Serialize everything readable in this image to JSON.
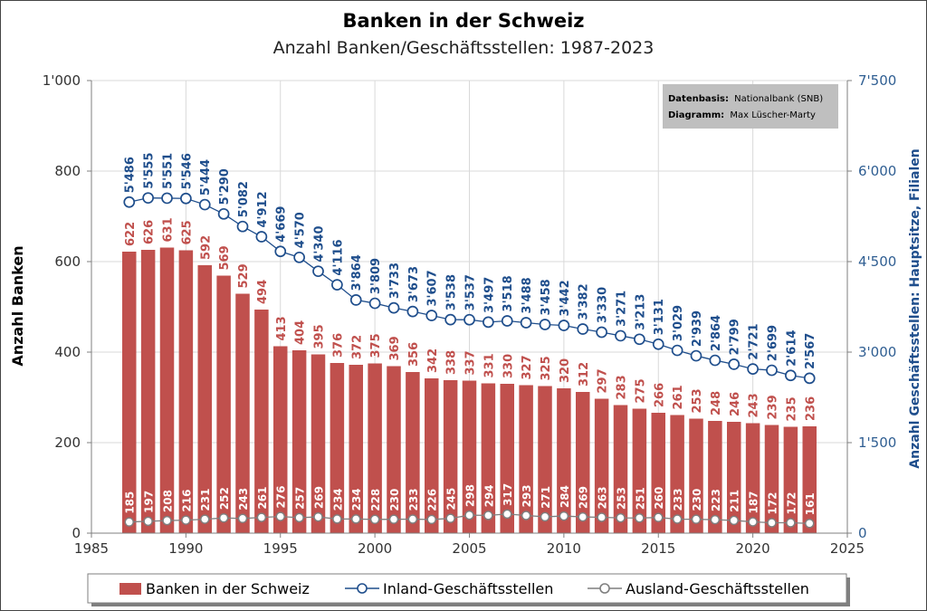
{
  "chart_data": {
    "type": "bar",
    "title": "Banken in der Schweiz",
    "subtitle": "Anzahl Banken/Geschäftsstellen: 1987-2023",
    "ylabel": "Anzahl Banken",
    "y2label": "Anzahl Geschäftsstellen: Hauptsitze, Filialen",
    "xlim": [
      1985,
      2025
    ],
    "x_ticks": [
      "1985",
      "1990",
      "1995",
      "2000",
      "2005",
      "2010",
      "2015",
      "2020",
      "2025"
    ],
    "ylim": [
      0,
      1000
    ],
    "y_ticks": [
      "0",
      "200",
      "400",
      "600",
      "800",
      "1'000"
    ],
    "y2lim": [
      0,
      7500
    ],
    "y2_ticks": [
      "0",
      "1'500",
      "3'000",
      "4'500",
      "6'000",
      "7'500"
    ],
    "grid": true,
    "legend_position": "bottom",
    "source_note": {
      "line1_key": "Datenbasis:",
      "line1_value": "Nationalbank (SNB)",
      "line2_key": "Diagramm:",
      "line2_value": "Max Lüscher-Marty"
    },
    "x": [
      1987,
      1988,
      1989,
      1990,
      1991,
      1992,
      1993,
      1994,
      1995,
      1996,
      1997,
      1998,
      1999,
      2000,
      2001,
      2002,
      2003,
      2004,
      2005,
      2006,
      2007,
      2008,
      2009,
      2010,
      2011,
      2012,
      2013,
      2014,
      2015,
      2016,
      2017,
      2018,
      2019,
      2020,
      2021,
      2022,
      2023
    ],
    "series": [
      {
        "name": "Banken in der Schweiz",
        "type": "bar",
        "axis": "left",
        "color": "#c0504d",
        "values": [
          622,
          626,
          631,
          625,
          592,
          569,
          529,
          494,
          413,
          404,
          395,
          376,
          372,
          375,
          369,
          356,
          342,
          338,
          337,
          331,
          330,
          327,
          325,
          320,
          312,
          297,
          283,
          275,
          266,
          261,
          253,
          248,
          246,
          243,
          239,
          235,
          236
        ]
      },
      {
        "name": "Inland-Geschäftsstellen",
        "type": "line",
        "axis": "right",
        "color": "#1f4e8c",
        "values": [
          5486,
          5555,
          5551,
          5546,
          5444,
          5290,
          5082,
          4912,
          4669,
          4570,
          4340,
          4116,
          3864,
          3809,
          3733,
          3673,
          3607,
          3538,
          3537,
          3497,
          3518,
          3488,
          3458,
          3442,
          3382,
          3330,
          3271,
          3213,
          3131,
          3029,
          2939,
          2864,
          2799,
          2721,
          2699,
          2614,
          2567
        ],
        "labels": [
          "5'486",
          "5'555",
          "5'551",
          "5'546",
          "5'444",
          "5'290",
          "5'082",
          "4'912",
          "4'669",
          "4'570",
          "4'340",
          "4'116",
          "3'864",
          "3'809",
          "3'733",
          "3'673",
          "3'607",
          "3'538",
          "3'537",
          "3'497",
          "3'518",
          "3'488",
          "3'458",
          "3'442",
          "3'382",
          "3'330",
          "3'271",
          "3'213",
          "3'131",
          "3'029",
          "2'939",
          "2'864",
          "2'799",
          "2'721",
          "2'699",
          "2'614",
          "2'567"
        ]
      },
      {
        "name": "Ausland-Geschäftsstellen",
        "type": "line",
        "axis": "right",
        "color": "#7f7f7f",
        "values": [
          185,
          197,
          208,
          216,
          231,
          252,
          243,
          261,
          276,
          257,
          269,
          234,
          234,
          228,
          230,
          233,
          226,
          245,
          298,
          294,
          317,
          293,
          271,
          284,
          269,
          263,
          253,
          251,
          260,
          233,
          230,
          223,
          211,
          187,
          172,
          172,
          161
        ]
      }
    ]
  }
}
